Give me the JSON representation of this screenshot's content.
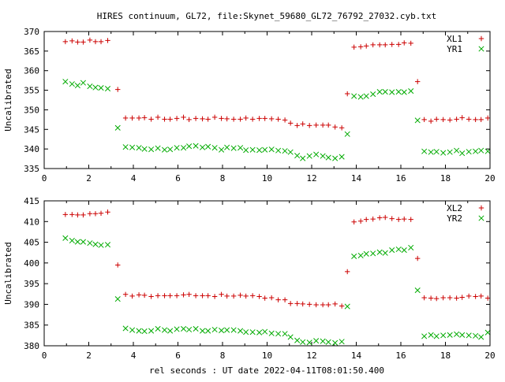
{
  "title": "HIRES continuum, GL72, file:Skynet_59680_GL72_76792_27032.cyb.txt",
  "xlabel": "rel seconds : UT date 2022-04-11T08:01:50.400",
  "chart_data": [
    {
      "type": "scatter",
      "ylabel": "Uncalibrated",
      "xlim": [
        0,
        20
      ],
      "ylim": [
        335,
        370
      ],
      "xticks": [
        "0",
        "2",
        "4",
        "6",
        "8",
        "10",
        "12",
        "14",
        "16",
        "18",
        "20"
      ],
      "yticks": [
        "335",
        "340",
        "345",
        "350",
        "355",
        "360",
        "365",
        "370"
      ],
      "legend_position": "top-right",
      "series": [
        {
          "name": "XL1",
          "marker": "plus",
          "color": "#cc0000",
          "x": [
            0.95,
            1.25,
            1.5,
            1.75,
            2.05,
            2.3,
            2.55,
            2.85,
            3.3,
            3.65,
            3.95,
            4.25,
            4.5,
            4.8,
            5.1,
            5.4,
            5.65,
            5.95,
            6.25,
            6.5,
            6.8,
            7.1,
            7.35,
            7.65,
            7.95,
            8.2,
            8.5,
            8.8,
            9.05,
            9.35,
            9.65,
            9.9,
            10.2,
            10.5,
            10.8,
            11.05,
            11.35,
            11.6,
            11.9,
            12.2,
            12.5,
            12.75,
            13.05,
            13.35,
            13.6,
            13.9,
            14.2,
            14.45,
            14.75,
            15.05,
            15.3,
            15.6,
            15.9,
            16.15,
            16.45,
            16.75,
            17.05,
            17.35,
            17.6,
            17.9,
            18.2,
            18.5,
            18.75,
            19.05,
            19.35,
            19.6,
            19.9
          ],
          "y": [
            367.4,
            367.6,
            367.3,
            367.3,
            367.8,
            367.4,
            367.4,
            367.7,
            355.2,
            347.9,
            347.9,
            347.9,
            348.0,
            347.6,
            348.1,
            347.6,
            347.6,
            347.8,
            348.1,
            347.5,
            347.8,
            347.7,
            347.6,
            348.1,
            347.8,
            347.7,
            347.6,
            347.6,
            347.9,
            347.6,
            347.8,
            347.8,
            347.7,
            347.6,
            347.4,
            346.6,
            346.0,
            346.4,
            346.0,
            346.1,
            346.1,
            346.1,
            345.6,
            345.4,
            354.1,
            366.0,
            366.1,
            366.3,
            366.6,
            366.6,
            366.6,
            366.7,
            366.7,
            367.1,
            367.0,
            357.2,
            347.5,
            347.1,
            347.6,
            347.5,
            347.4,
            347.6,
            348.0,
            347.6,
            347.5,
            347.5,
            347.9
          ]
        },
        {
          "name": "YR1",
          "marker": "cross",
          "color": "#00aa00",
          "x": [
            0.95,
            1.25,
            1.5,
            1.75,
            2.05,
            2.3,
            2.55,
            2.85,
            3.3,
            3.65,
            3.95,
            4.25,
            4.5,
            4.8,
            5.1,
            5.4,
            5.65,
            5.95,
            6.25,
            6.5,
            6.8,
            7.1,
            7.35,
            7.65,
            7.95,
            8.2,
            8.5,
            8.8,
            9.05,
            9.35,
            9.65,
            9.9,
            10.2,
            10.5,
            10.8,
            11.05,
            11.35,
            11.6,
            11.9,
            12.2,
            12.5,
            12.75,
            13.05,
            13.35,
            13.6,
            13.9,
            14.2,
            14.45,
            14.75,
            15.05,
            15.3,
            15.6,
            15.9,
            16.15,
            16.45,
            16.75,
            17.05,
            17.35,
            17.6,
            17.9,
            18.2,
            18.5,
            18.75,
            19.05,
            19.35,
            19.6,
            19.9
          ],
          "y": [
            357.2,
            356.6,
            356.2,
            356.9,
            356.0,
            355.7,
            355.6,
            355.4,
            345.4,
            340.5,
            340.4,
            340.3,
            340.0,
            339.9,
            340.2,
            339.8,
            339.9,
            340.3,
            340.3,
            340.7,
            340.8,
            340.4,
            340.6,
            340.3,
            339.8,
            340.4,
            340.2,
            340.3,
            339.7,
            339.8,
            339.7,
            339.8,
            339.9,
            339.6,
            339.5,
            339.2,
            338.3,
            337.6,
            338.2,
            338.6,
            338.2,
            337.8,
            337.6,
            338.0,
            343.8,
            353.5,
            353.3,
            353.5,
            354.0,
            354.6,
            354.6,
            354.5,
            354.6,
            354.5,
            354.8,
            347.3,
            339.4,
            339.2,
            339.3,
            339.0,
            339.2,
            339.6,
            338.9,
            339.3,
            339.4,
            339.6,
            339.4
          ]
        }
      ]
    },
    {
      "type": "scatter",
      "ylabel": "Uncalibrated",
      "xlim": [
        0,
        20
      ],
      "ylim": [
        380,
        415
      ],
      "xticks": [
        "0",
        "2",
        "4",
        "6",
        "8",
        "10",
        "12",
        "14",
        "16",
        "18",
        "20"
      ],
      "yticks": [
        "380",
        "385",
        "390",
        "395",
        "400",
        "405",
        "410",
        "415"
      ],
      "legend_position": "top-right",
      "series": [
        {
          "name": "XL2",
          "marker": "plus",
          "color": "#cc0000",
          "x": [
            0.95,
            1.25,
            1.5,
            1.75,
            2.05,
            2.3,
            2.55,
            2.85,
            3.3,
            3.65,
            3.95,
            4.25,
            4.5,
            4.8,
            5.1,
            5.4,
            5.65,
            5.95,
            6.25,
            6.5,
            6.8,
            7.1,
            7.35,
            7.65,
            7.95,
            8.2,
            8.5,
            8.8,
            9.05,
            9.35,
            9.65,
            9.9,
            10.2,
            10.5,
            10.8,
            11.05,
            11.35,
            11.6,
            11.9,
            12.2,
            12.5,
            12.75,
            13.05,
            13.35,
            13.6,
            13.9,
            14.2,
            14.45,
            14.75,
            15.05,
            15.3,
            15.6,
            15.9,
            16.15,
            16.45,
            16.75,
            17.05,
            17.35,
            17.6,
            17.9,
            18.2,
            18.5,
            18.75,
            19.05,
            19.35,
            19.6,
            19.9
          ],
          "y": [
            411.7,
            411.7,
            411.6,
            411.6,
            411.9,
            411.9,
            412.0,
            412.3,
            399.5,
            392.4,
            392.0,
            392.3,
            392.2,
            391.9,
            392.1,
            392.1,
            392.1,
            392.1,
            392.3,
            392.4,
            392.1,
            392.1,
            392.1,
            391.9,
            392.4,
            392.0,
            392.0,
            392.2,
            392.0,
            392.1,
            391.9,
            391.5,
            391.6,
            391.1,
            391.1,
            390.2,
            390.2,
            390.1,
            390.0,
            389.9,
            389.9,
            389.9,
            390.1,
            389.6,
            397.9,
            409.9,
            410.1,
            410.5,
            410.6,
            410.9,
            411.0,
            410.7,
            410.5,
            410.6,
            410.5,
            401.1,
            391.6,
            391.5,
            391.4,
            391.6,
            391.6,
            391.5,
            391.7,
            392.0,
            391.9,
            392.0,
            391.5
          ]
        },
        {
          "name": "YR2",
          "marker": "cross",
          "color": "#00aa00",
          "x": [
            0.95,
            1.25,
            1.5,
            1.75,
            2.05,
            2.3,
            2.55,
            2.85,
            3.3,
            3.65,
            3.95,
            4.25,
            4.5,
            4.8,
            5.1,
            5.4,
            5.65,
            5.95,
            6.25,
            6.5,
            6.8,
            7.1,
            7.35,
            7.65,
            7.95,
            8.2,
            8.5,
            8.8,
            9.05,
            9.35,
            9.65,
            9.9,
            10.2,
            10.5,
            10.8,
            11.05,
            11.35,
            11.6,
            11.9,
            12.2,
            12.5,
            12.75,
            13.05,
            13.35,
            13.6,
            13.9,
            14.2,
            14.45,
            14.75,
            15.05,
            15.3,
            15.6,
            15.9,
            16.15,
            16.45,
            16.75,
            17.05,
            17.35,
            17.6,
            17.9,
            18.2,
            18.5,
            18.75,
            19.05,
            19.35,
            19.6,
            19.9
          ],
          "y": [
            406.0,
            405.4,
            405.1,
            405.1,
            404.8,
            404.5,
            404.3,
            404.4,
            391.3,
            384.2,
            383.8,
            383.6,
            383.5,
            383.6,
            384.1,
            383.8,
            383.6,
            384.0,
            384.1,
            383.9,
            384.1,
            383.6,
            383.6,
            383.9,
            383.7,
            383.8,
            383.8,
            383.6,
            383.3,
            383.3,
            383.2,
            383.4,
            383.0,
            382.9,
            382.9,
            382.1,
            381.3,
            380.9,
            380.8,
            381.2,
            381.1,
            380.9,
            380.7,
            381.0,
            389.5,
            401.6,
            401.8,
            402.2,
            402.3,
            402.6,
            402.4,
            403.1,
            403.3,
            403.1,
            403.7,
            393.4,
            382.3,
            382.6,
            382.3,
            382.5,
            382.6,
            382.8,
            382.6,
            382.5,
            382.4,
            382.1,
            383.2
          ]
        }
      ]
    }
  ]
}
